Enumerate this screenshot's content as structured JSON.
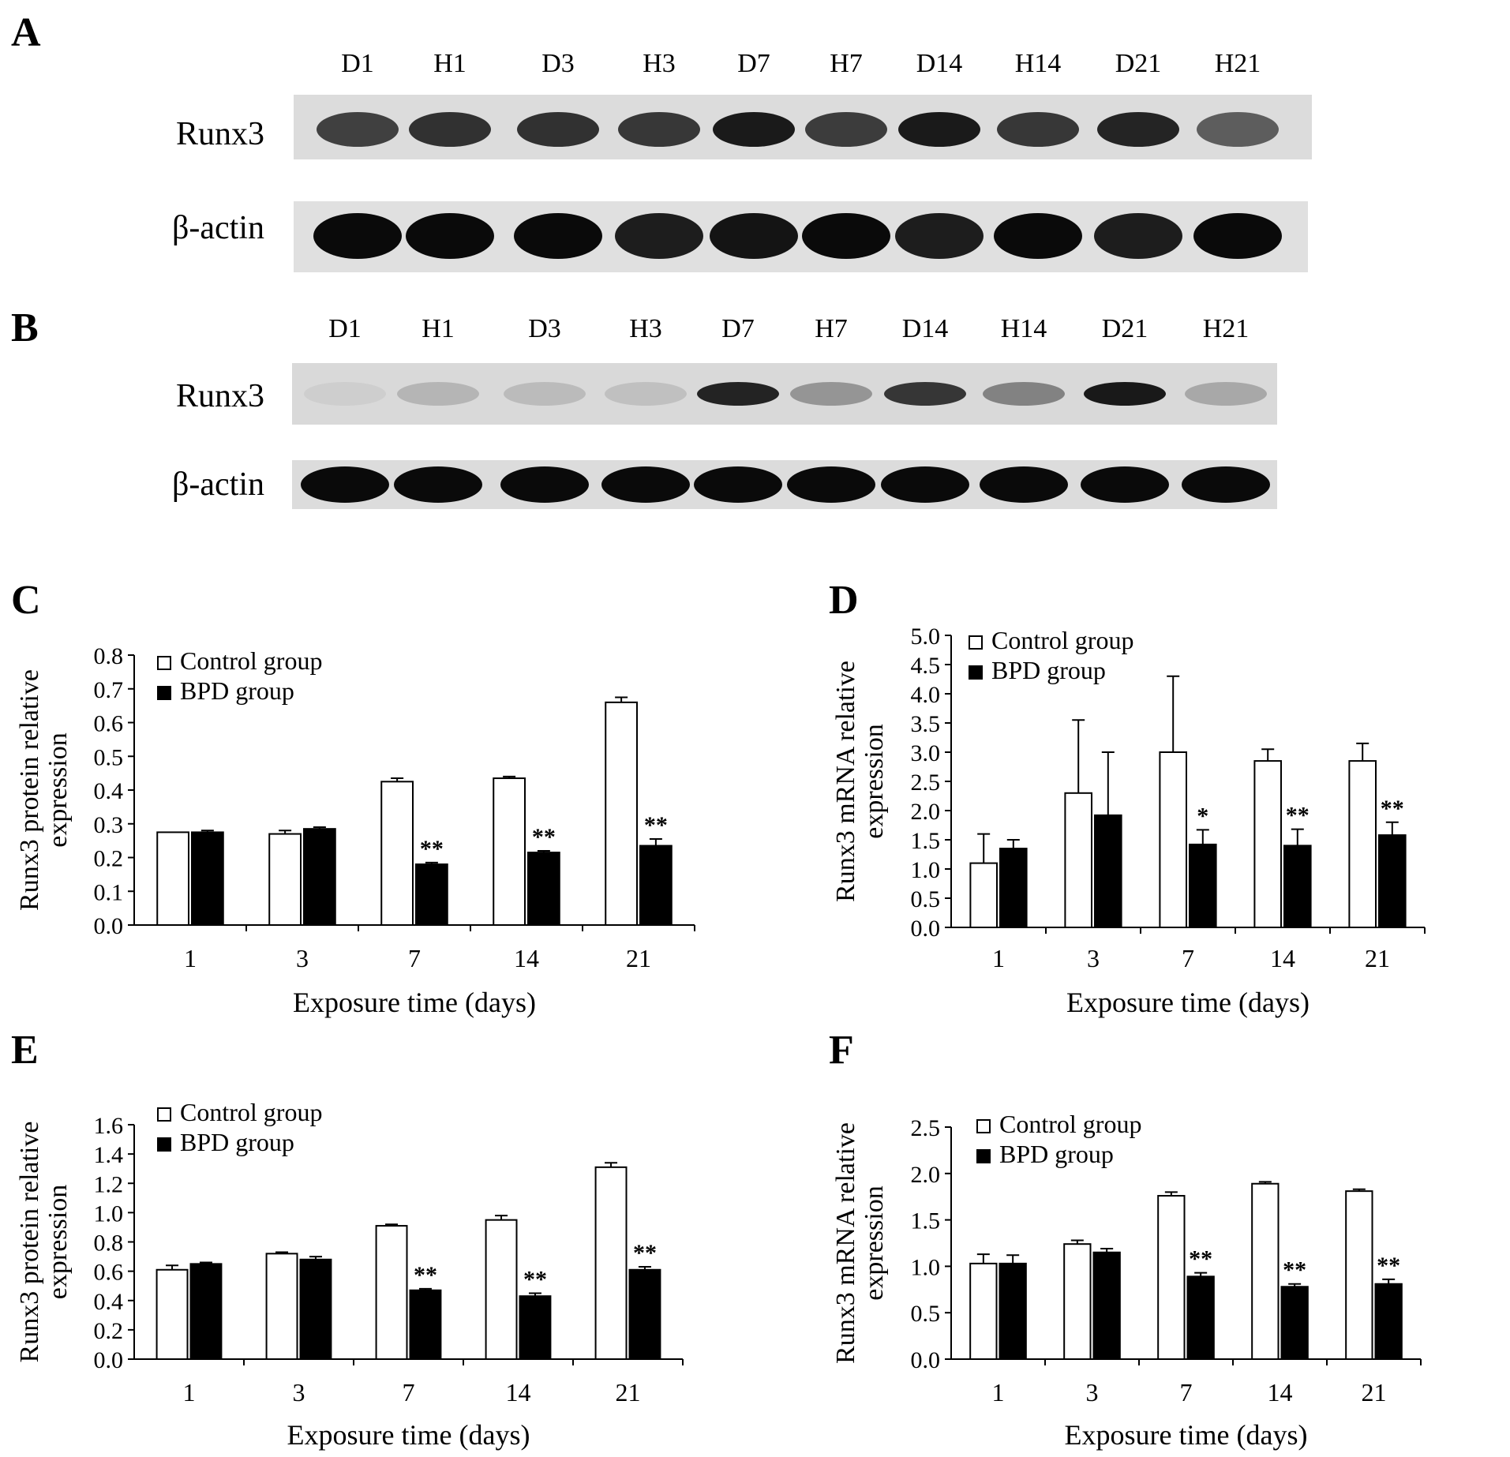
{
  "panels": {
    "a": "A",
    "b": "B",
    "c": "C",
    "d": "D",
    "e": "E",
    "f": "F"
  },
  "blots": {
    "lanes": [
      "D1",
      "H1",
      "D3",
      "H3",
      "D7",
      "H7",
      "D14",
      "H14",
      "D21",
      "H21"
    ],
    "row_runx3": "Runx3",
    "row_actin": "β-actin",
    "A": {
      "runx3_intensity": [
        0.8,
        0.88,
        0.88,
        0.85,
        1.0,
        0.82,
        1.0,
        0.85,
        0.95,
        0.65
      ],
      "actin_intensity": [
        1.0,
        1.0,
        1.0,
        0.9,
        0.95,
        1.0,
        0.9,
        1.0,
        0.9,
        1.0
      ]
    },
    "B": {
      "runx3_intensity": [
        0.05,
        0.18,
        0.15,
        0.12,
        0.95,
        0.35,
        0.85,
        0.45,
        1.0,
        0.25
      ],
      "actin_intensity": [
        1.0,
        1.0,
        1.0,
        1.0,
        1.0,
        1.0,
        1.0,
        1.0,
        1.0,
        1.0
      ]
    }
  },
  "chart_data": [
    {
      "panel": "C",
      "type": "bar",
      "categories": [
        "1",
        "3",
        "7",
        "14",
        "21"
      ],
      "xlabel": "Exposure time (days)",
      "ylabel": [
        "Runx3 protein relative",
        "expression"
      ],
      "ylim": [
        0,
        0.8
      ],
      "yticks": [
        "0.0",
        "0.1",
        "0.2",
        "0.3",
        "0.4",
        "0.5",
        "0.6",
        "0.7",
        "0.8"
      ],
      "legend": "top-left",
      "series": [
        {
          "name": "Control group",
          "color": "#ffffff",
          "values": [
            0.275,
            0.27,
            0.425,
            0.435,
            0.66
          ],
          "err": [
            0,
            0.01,
            0.01,
            0.005,
            0.015
          ]
        },
        {
          "name": "BPD group",
          "color": "#000000",
          "values": [
            0.275,
            0.285,
            0.18,
            0.215,
            0.235
          ],
          "err": [
            0.005,
            0.005,
            0.005,
            0.005,
            0.02
          ]
        }
      ],
      "annotations": [
        "",
        "",
        "**",
        "**",
        "**"
      ]
    },
    {
      "panel": "D",
      "type": "bar",
      "categories": [
        "1",
        "3",
        "7",
        "14",
        "21"
      ],
      "xlabel": "Exposure time (days)",
      "ylabel": [
        "Runx3 mRNA relative",
        "expression"
      ],
      "ylim": [
        0,
        5.0
      ],
      "yticks": [
        "0.0",
        "0.5",
        "1.0",
        "1.5",
        "2.0",
        "2.5",
        "3.0",
        "3.5",
        "4.0",
        "4.5",
        "5.0"
      ],
      "legend": "top-left",
      "series": [
        {
          "name": "Control group",
          "color": "#ffffff",
          "values": [
            1.1,
            2.3,
            3.0,
            2.85,
            2.85
          ],
          "err": [
            0.5,
            1.25,
            1.3,
            0.2,
            0.3
          ]
        },
        {
          "name": "BPD group",
          "color": "#000000",
          "values": [
            1.35,
            1.92,
            1.42,
            1.4,
            1.58
          ],
          "err": [
            0.15,
            1.08,
            0.25,
            0.28,
            0.22
          ]
        }
      ],
      "annotations": [
        "",
        "",
        "*",
        "**",
        "**"
      ]
    },
    {
      "panel": "E",
      "type": "bar",
      "categories": [
        "1",
        "3",
        "7",
        "14",
        "21"
      ],
      "xlabel": "Exposure time (days)",
      "ylabel": [
        "Runx3 protein relative",
        "expression"
      ],
      "ylim": [
        0,
        1.6
      ],
      "yticks": [
        "0.0",
        "0.2",
        "0.4",
        "0.6",
        "0.8",
        "1.0",
        "1.2",
        "1.4",
        "1.6"
      ],
      "legend": "top-left",
      "series": [
        {
          "name": "Control group",
          "color": "#ffffff",
          "values": [
            0.61,
            0.72,
            0.91,
            0.95,
            1.31
          ],
          "err": [
            0.03,
            0.01,
            0.01,
            0.03,
            0.03
          ]
        },
        {
          "name": "BPD group",
          "color": "#000000",
          "values": [
            0.65,
            0.68,
            0.47,
            0.43,
            0.61
          ],
          "err": [
            0.01,
            0.02,
            0.01,
            0.02,
            0.02
          ]
        }
      ],
      "annotations": [
        "",
        "",
        "**",
        "**",
        "**"
      ]
    },
    {
      "panel": "F",
      "type": "bar",
      "categories": [
        "1",
        "3",
        "7",
        "14",
        "21"
      ],
      "xlabel": "Exposure time (days)",
      "ylabel": [
        "Runx3 mRNA relative",
        "expression"
      ],
      "ylim": [
        0,
        2.5
      ],
      "yticks": [
        "0.0",
        "0.5",
        "1.0",
        "1.5",
        "2.0",
        "2.5"
      ],
      "legend": "top-left",
      "series": [
        {
          "name": "Control group",
          "color": "#ffffff",
          "values": [
            1.03,
            1.24,
            1.76,
            1.89,
            1.81
          ],
          "err": [
            0.1,
            0.04,
            0.04,
            0.02,
            0.02
          ]
        },
        {
          "name": "BPD group",
          "color": "#000000",
          "values": [
            1.03,
            1.15,
            0.89,
            0.78,
            0.81
          ],
          "err": [
            0.09,
            0.04,
            0.04,
            0.03,
            0.05
          ]
        }
      ],
      "annotations": [
        "",
        "",
        "**",
        "**",
        "**"
      ]
    }
  ]
}
